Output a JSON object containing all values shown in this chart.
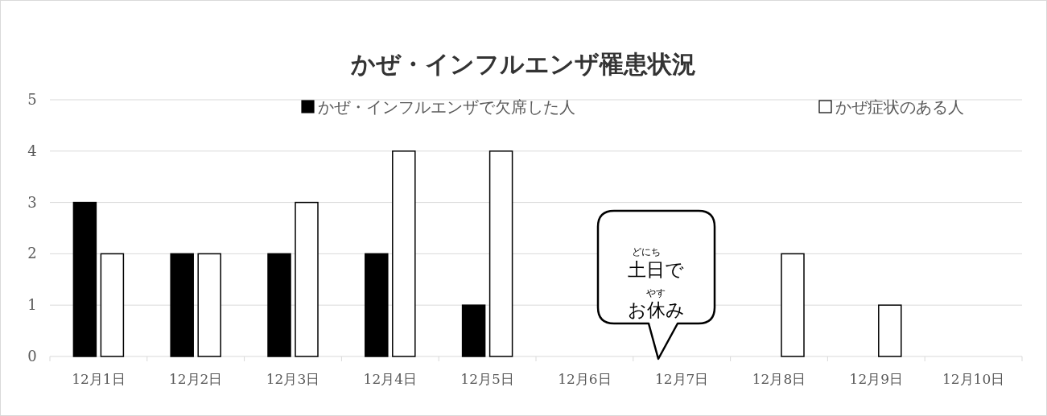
{
  "chart_data": {
    "type": "bar",
    "title": "かぜ・インフルエンザ罹患状況",
    "categories": [
      "12月1日",
      "12月2日",
      "12月3日",
      "12月4日",
      "12月5日",
      "12月6日",
      "12月7日",
      "12月8日",
      "12月9日",
      "12月10日"
    ],
    "series": [
      {
        "name": "かぜ・インフルエンザで欠席した人",
        "color": "#000000",
        "values": [
          3,
          2,
          2,
          2,
          1,
          null,
          null,
          null,
          null,
          null
        ]
      },
      {
        "name": "かぜ症状のある人",
        "color": "#ffffff",
        "values": [
          2,
          2,
          3,
          4,
          4,
          null,
          null,
          2,
          1,
          null
        ]
      }
    ],
    "ylim": [
      0,
      5
    ],
    "yticks": [
      0,
      1,
      2,
      3,
      4,
      5
    ],
    "grid": "y",
    "legend": "top right",
    "annotations": [
      "土日で",
      "お休み",
      "どにち",
      "やす"
    ]
  }
}
